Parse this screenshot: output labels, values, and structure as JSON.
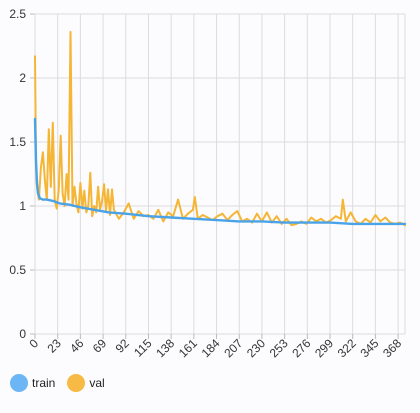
{
  "chart_data": {
    "type": "line",
    "title": "",
    "xlabel": "",
    "ylabel": "",
    "ylim": [
      0,
      2.5
    ],
    "xlim": [
      0,
      375
    ],
    "y_ticks": [
      0,
      0.5,
      1.0,
      1.5,
      2.0,
      2.5
    ],
    "x_ticks": [
      0,
      23,
      46,
      69,
      92,
      115,
      138,
      161,
      184,
      207,
      230,
      253,
      276,
      299,
      322,
      345,
      368
    ],
    "grid": true,
    "legend_position": "bottom-left",
    "series": [
      {
        "name": "train",
        "color": "#4aa3e8",
        "fill": "#6cb6f5",
        "x": [
          0,
          1,
          2,
          3,
          5,
          8,
          12,
          18,
          25,
          35,
          46,
          60,
          75,
          92,
          115,
          138,
          161,
          184,
          207,
          230,
          253,
          276,
          299,
          322,
          345,
          368,
          375
        ],
        "values": [
          1.68,
          1.35,
          1.18,
          1.1,
          1.06,
          1.05,
          1.05,
          1.04,
          1.02,
          1.01,
          0.99,
          0.97,
          0.95,
          0.94,
          0.92,
          0.91,
          0.9,
          0.89,
          0.88,
          0.88,
          0.87,
          0.87,
          0.87,
          0.86,
          0.86,
          0.86,
          0.86
        ]
      },
      {
        "name": "val",
        "color": "#f5b535",
        "fill": "#f7bb45",
        "x": [
          0,
          1,
          2,
          4,
          6,
          8,
          10,
          12,
          14,
          16,
          18,
          20,
          22,
          24,
          26,
          28,
          30,
          32,
          34,
          36,
          38,
          40,
          42,
          44,
          46,
          48,
          50,
          52,
          54,
          56,
          58,
          60,
          62,
          64,
          66,
          68,
          70,
          72,
          74,
          76,
          78,
          80,
          85,
          90,
          95,
          100,
          105,
          110,
          115,
          120,
          125,
          130,
          135,
          140,
          145,
          150,
          155,
          160,
          162,
          165,
          170,
          175,
          180,
          185,
          190,
          195,
          200,
          205,
          210,
          215,
          220,
          225,
          230,
          235,
          240,
          245,
          250,
          255,
          260,
          265,
          270,
          275,
          280,
          285,
          290,
          295,
          300,
          305,
          310,
          312,
          315,
          320,
          325,
          330,
          335,
          340,
          345,
          350,
          355,
          360,
          365,
          370,
          375
        ],
        "values": [
          2.17,
          1.35,
          1.15,
          1.05,
          1.3,
          1.42,
          1.2,
          1.05,
          1.6,
          1.15,
          1.65,
          1.05,
          0.98,
          1.12,
          1.55,
          1.1,
          1.0,
          1.25,
          1.05,
          2.36,
          1.0,
          1.15,
          1.02,
          0.95,
          1.18,
          0.98,
          1.12,
          0.95,
          1.0,
          1.26,
          0.92,
          1.0,
          0.95,
          1.15,
          0.97,
          1.04,
          1.17,
          0.96,
          1.13,
          0.93,
          1.13,
          0.97,
          0.9,
          0.95,
          1.02,
          0.9,
          0.96,
          0.92,
          0.93,
          0.9,
          0.97,
          0.88,
          0.95,
          0.92,
          1.05,
          0.9,
          0.94,
          0.97,
          1.07,
          0.9,
          0.93,
          0.91,
          0.89,
          0.92,
          0.94,
          0.89,
          0.93,
          0.96,
          0.88,
          0.9,
          0.87,
          0.94,
          0.88,
          0.95,
          0.87,
          0.92,
          0.86,
          0.9,
          0.85,
          0.86,
          0.88,
          0.86,
          0.91,
          0.88,
          0.9,
          0.87,
          0.89,
          0.92,
          0.9,
          1.05,
          0.88,
          0.95,
          0.88,
          0.86,
          0.9,
          0.87,
          0.93,
          0.88,
          0.91,
          0.87,
          0.86,
          0.87,
          0.85
        ]
      }
    ]
  }
}
